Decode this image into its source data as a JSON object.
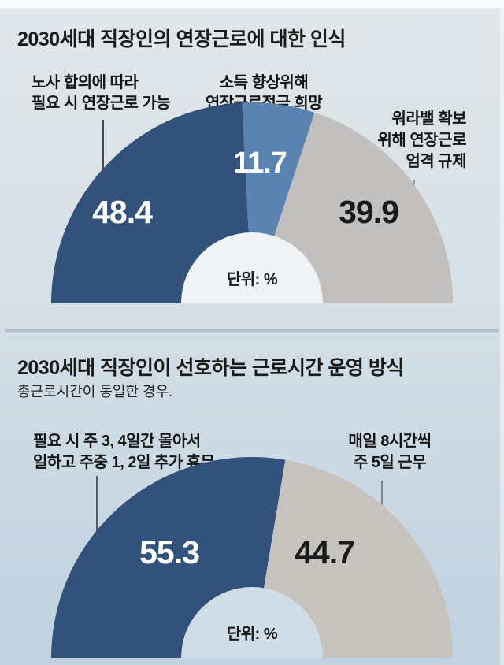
{
  "page": {
    "background_top": "#e1e6e9",
    "background_bottom": "#c0d2df"
  },
  "chart_data": [
    {
      "type": "pie",
      "variant": "semicircle-donut",
      "title": "2030세대 직장인의 연장근로에 대한 인식",
      "unit_label": "단위: %",
      "legend_position": "callout-labels-with-leader-lines",
      "total": 100,
      "slices": [
        {
          "label": "노사 합의에 따라\n필요 시 연장근로 가능",
          "value": 48.4,
          "color": "#32527b",
          "value_text_color": "#ffffff"
        },
        {
          "label": "소득 향상위해\n연장근로적극 희망",
          "value": 11.7,
          "color": "#5b83b1",
          "value_text_color": "#ffffff"
        },
        {
          "label": "워라밸 확보\n위해 연장근로\n엄격 규제",
          "value": 39.9,
          "color": "#c1c0be",
          "value_text_color": "#1a1a1a"
        }
      ]
    },
    {
      "type": "pie",
      "variant": "semicircle-donut",
      "title": "2030세대 직장인이 선호하는 근로시간 운영 방식",
      "subtitle": "총근로시간이 동일한 경우.",
      "unit_label": "단위: %",
      "legend_position": "callout-labels-with-leader-lines",
      "total": 100,
      "slices": [
        {
          "label": "필요 시 주 3, 4일간 몰아서\n일하고 주중 1, 2일 추가 휴무",
          "value": 55.3,
          "color": "#32527b",
          "value_text_color": "#ffffff"
        },
        {
          "label": "매일 8시간씩\n주 5일 근무",
          "value": 44.7,
          "color": "#c6c3bf",
          "value_text_color": "#1a1a1a"
        }
      ]
    }
  ]
}
